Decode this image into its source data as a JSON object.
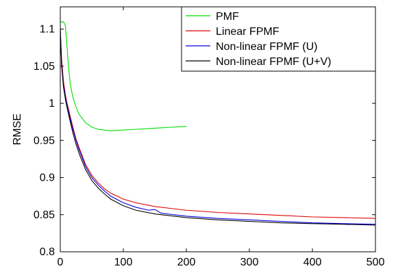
{
  "chart_data": {
    "type": "line",
    "xlabel": "",
    "ylabel": "RMSE",
    "xlim": [
      0,
      500
    ],
    "ylim": [
      0.8,
      1.13
    ],
    "x_ticks": [
      0,
      100,
      200,
      300,
      400,
      500
    ],
    "x_tick_labels": [
      "0",
      "100",
      "200",
      "300",
      "400",
      "500"
    ],
    "y_ticks": [
      0.8,
      0.85,
      0.9,
      0.95,
      1.0,
      1.05,
      1.1
    ],
    "y_tick_labels": [
      "0.8",
      "0.85",
      "0.9",
      "0.95",
      "1",
      "1.05",
      "1.1"
    ],
    "grid": false,
    "legend_position": "top-right",
    "series": [
      {
        "name": "PMF",
        "color": "#00dd00",
        "x": [
          0,
          2,
          5,
          8,
          10,
          13,
          16,
          20,
          25,
          30,
          40,
          50,
          60,
          70,
          80,
          100,
          120,
          140,
          160,
          180,
          200
        ],
        "y": [
          1.108,
          1.11,
          1.11,
          1.105,
          1.085,
          1.05,
          1.025,
          1.008,
          0.995,
          0.985,
          0.974,
          0.968,
          0.965,
          0.964,
          0.963,
          0.964,
          0.965,
          0.966,
          0.967,
          0.968,
          0.969
        ]
      },
      {
        "name": "Linear FPMF",
        "color": "#dd0000",
        "x": [
          0,
          2,
          5,
          8,
          10,
          15,
          20,
          25,
          30,
          40,
          50,
          60,
          70,
          80,
          100,
          120,
          150,
          200,
          250,
          300,
          350,
          400,
          450,
          500
        ],
        "y": [
          1.1,
          1.06,
          1.03,
          1.012,
          1.003,
          0.985,
          0.968,
          0.952,
          0.94,
          0.918,
          0.903,
          0.893,
          0.885,
          0.879,
          0.871,
          0.866,
          0.861,
          0.856,
          0.853,
          0.851,
          0.849,
          0.847,
          0.846,
          0.845
        ]
      },
      {
        "name": "Non-linear FPMF (U)",
        "color": "#0000dd",
        "x": [
          0,
          2,
          5,
          8,
          10,
          15,
          20,
          25,
          30,
          40,
          50,
          60,
          70,
          80,
          100,
          120,
          140,
          150,
          160,
          180,
          200,
          250,
          300,
          350,
          400,
          450,
          500
        ],
        "y": [
          1.1,
          1.055,
          1.025,
          1.01,
          1.0,
          0.982,
          0.965,
          0.95,
          0.937,
          0.915,
          0.9,
          0.89,
          0.882,
          0.875,
          0.866,
          0.86,
          0.856,
          0.857,
          0.852,
          0.85,
          0.848,
          0.845,
          0.843,
          0.841,
          0.839,
          0.838,
          0.837
        ]
      },
      {
        "name": "Non-linear FPMF (U+V)",
        "color": "#000000",
        "x": [
          0,
          2,
          5,
          8,
          10,
          15,
          20,
          25,
          30,
          40,
          50,
          60,
          70,
          80,
          100,
          120,
          150,
          200,
          250,
          300,
          350,
          400,
          450,
          500
        ],
        "y": [
          1.1,
          1.052,
          1.022,
          1.006,
          0.997,
          0.978,
          0.96,
          0.945,
          0.932,
          0.911,
          0.896,
          0.886,
          0.878,
          0.871,
          0.862,
          0.856,
          0.851,
          0.846,
          0.843,
          0.841,
          0.839,
          0.838,
          0.837,
          0.836
        ]
      }
    ]
  }
}
